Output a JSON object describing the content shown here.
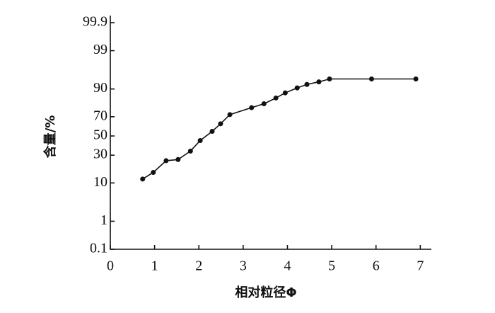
{
  "chart_data": {
    "type": "line",
    "y_scale": "probability",
    "x_label": "相对粒径Φ",
    "y_label": "含量/%",
    "x": [
      0.73,
      0.97,
      1.26,
      1.53,
      1.81,
      2.03,
      2.3,
      2.49,
      2.7,
      3.19,
      3.47,
      3.74,
      3.95,
      4.22,
      4.44,
      4.71,
      4.95,
      5.9,
      6.9
    ],
    "series": [
      {
        "color": "#111111",
        "values": [
          12,
          16,
          25,
          26,
          34,
          45,
          55,
          63,
          72,
          78,
          81,
          85,
          88,
          90.5,
          92,
          93,
          94,
          94,
          94
        ]
      }
    ],
    "xlim": [
      0,
      7.25
    ],
    "xticks": [
      0,
      1,
      2,
      3,
      4,
      5,
      6,
      7
    ],
    "ylim": [
      0.1,
      99.9
    ],
    "yticks": [
      0.1,
      1,
      10,
      30,
      50,
      70,
      90,
      99,
      99.9
    ]
  }
}
